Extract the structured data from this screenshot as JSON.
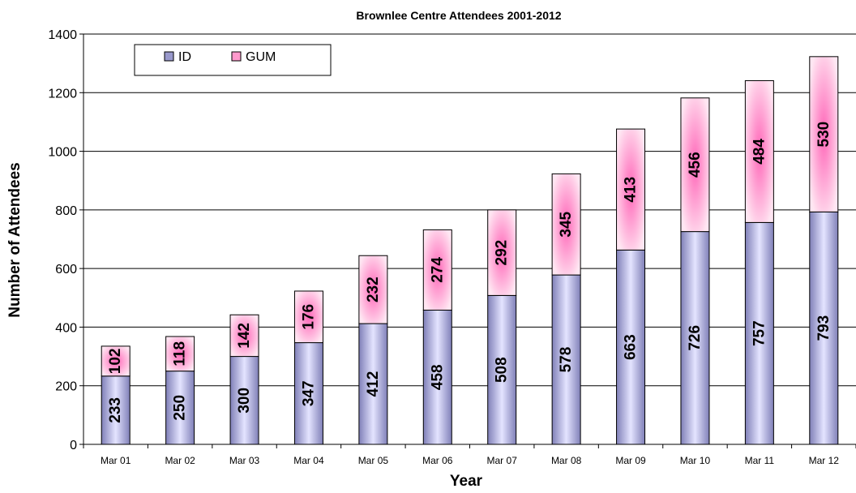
{
  "chart_data": {
    "type": "bar",
    "stacked": true,
    "title": "Brownlee Centre Attendees 2001-2012",
    "xlabel": "Year",
    "ylabel": "Number of Attendees",
    "ylim": [
      0,
      1400
    ],
    "yticks": [
      0,
      200,
      400,
      600,
      800,
      1000,
      1200,
      1400
    ],
    "grid": true,
    "legend": "top-left",
    "categories": [
      "Mar 01",
      "Mar 02",
      "Mar 03",
      "Mar 04",
      "Mar 05",
      "Mar 06",
      "Mar 07",
      "Mar 08",
      "Mar 09",
      "Mar 10",
      "Mar 11",
      "Mar 12"
    ],
    "series": [
      {
        "name": "ID",
        "color": "#9999cc",
        "values": [
          233,
          250,
          300,
          347,
          412,
          458,
          508,
          578,
          663,
          726,
          757,
          793
        ]
      },
      {
        "name": "GUM",
        "color": "#ff99cc",
        "values": [
          102,
          118,
          142,
          176,
          232,
          274,
          292,
          345,
          413,
          456,
          484,
          530
        ]
      }
    ]
  }
}
